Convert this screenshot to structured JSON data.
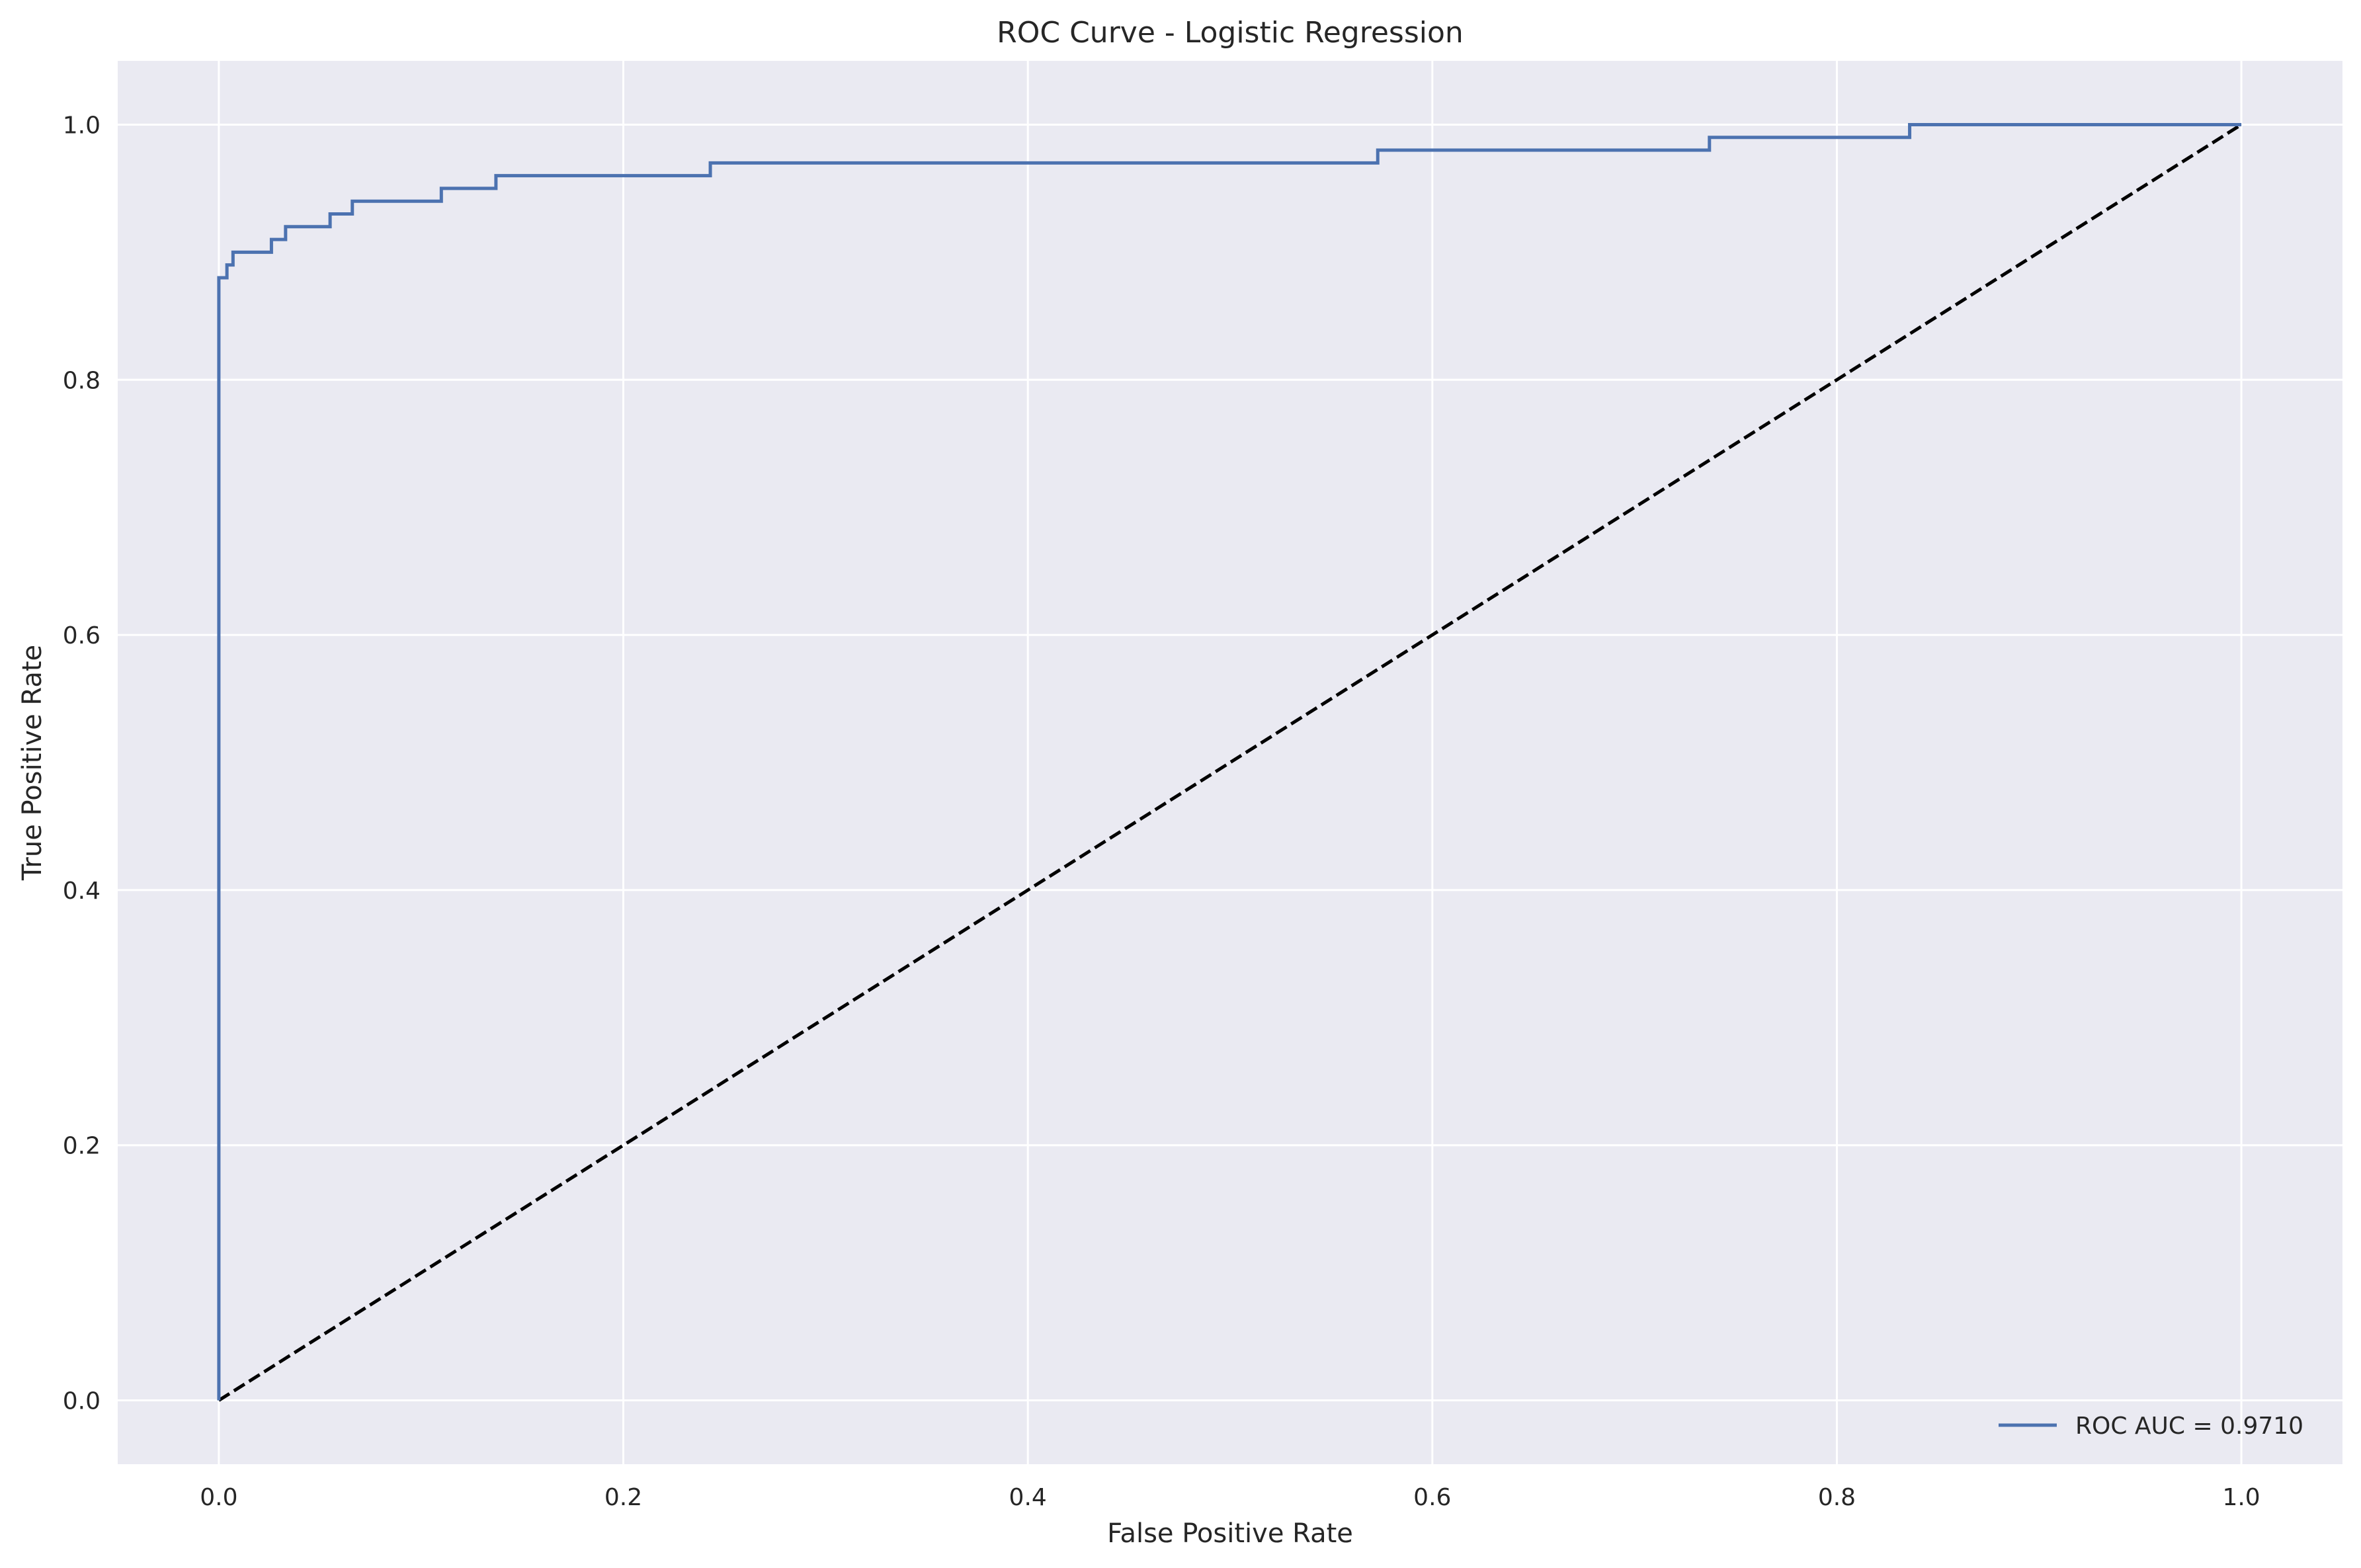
{
  "chart_data": {
    "type": "line",
    "title": "ROC Curve - Logistic Regression",
    "xlabel": "False Positive Rate",
    "ylabel": "True Positive Rate",
    "xlim": [
      -0.05,
      1.05
    ],
    "ylim": [
      -0.05,
      1.05
    ],
    "xticks": [
      0.0,
      0.2,
      0.4,
      0.6,
      0.8,
      1.0
    ],
    "xtick_labels": [
      "0.0",
      "0.2",
      "0.4",
      "0.6",
      "0.8",
      "1.0"
    ],
    "yticks": [
      0.0,
      0.2,
      0.4,
      0.6,
      0.8,
      1.0
    ],
    "ytick_labels": [
      "0.0",
      "0.2",
      "0.4",
      "0.6",
      "0.8",
      "1.0"
    ],
    "grid": true,
    "legend_position": "lower-right",
    "background_color": "#EAEAF2",
    "grid_color": "#FFFFFF",
    "series": [
      {
        "name": "ROC AUC = 0.9710",
        "color": "#4C72B0",
        "style": "solid",
        "x": [
          0.0,
          0.0,
          0.0,
          0.0,
          0.001,
          0.001,
          0.004,
          0.004,
          0.007,
          0.007,
          0.026,
          0.026,
          0.033,
          0.033,
          0.055,
          0.055,
          0.066,
          0.066,
          0.11,
          0.11,
          0.137,
          0.137,
          0.243,
          0.243,
          0.573,
          0.573,
          0.737,
          0.737,
          0.836,
          0.836,
          1.0
        ],
        "y": [
          0.0,
          0.78,
          0.84,
          0.88,
          0.88,
          0.88,
          0.88,
          0.89,
          0.89,
          0.9,
          0.9,
          0.91,
          0.91,
          0.92,
          0.92,
          0.93,
          0.93,
          0.94,
          0.94,
          0.95,
          0.95,
          0.96,
          0.96,
          0.97,
          0.97,
          0.98,
          0.98,
          0.99,
          0.99,
          1.0,
          1.0
        ]
      },
      {
        "name": "",
        "color": "#000000",
        "style": "dashed",
        "x": [
          0.0,
          1.0
        ],
        "y": [
          0.0,
          1.0
        ]
      }
    ]
  }
}
